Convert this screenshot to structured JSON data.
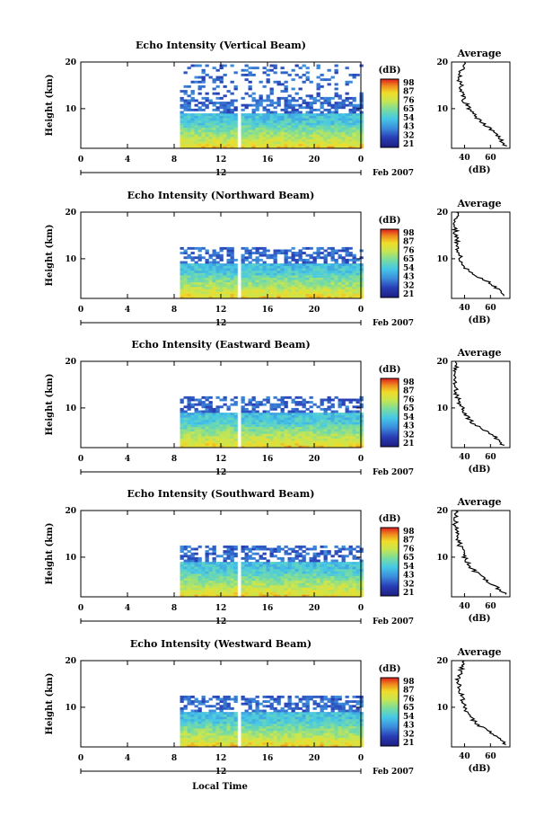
{
  "figure": {
    "x_title": "Local Time",
    "date_label": "Feb 2007",
    "day_label": "12",
    "x_ticks": [
      "0",
      "4",
      "8",
      "12",
      "16",
      "20",
      "0"
    ],
    "y_label": "Height (km)",
    "y_ticks": [
      "20",
      "10"
    ],
    "colorbar_unit": "(dB)",
    "colorbar_ticks": [
      "98",
      "87",
      "76",
      "65",
      "54",
      "43",
      "32",
      "21"
    ],
    "avg_title": "Average",
    "avg_xlabel": "(dB)",
    "avg_x_ticks": [
      "40",
      "60"
    ],
    "avg_y_ticks": [
      "20",
      "10"
    ],
    "colors": {
      "ink": "#000000",
      "low": "#283c9b",
      "mid": "#3ca0d7",
      "high": "#f0e628",
      "peak": "#d2281e"
    }
  },
  "chart_data": [
    {
      "type": "heatmap",
      "title": "Echo Intensity (Vertical Beam)",
      "xlabel": "Local Time",
      "ylabel": "Height (km)",
      "xlim": [
        0,
        24
      ],
      "ylim": [
        1.5,
        20
      ],
      "zlim": [
        21,
        98
      ],
      "data_start_hour": 8.5,
      "gap_hours": [
        13.4,
        13.6
      ],
      "echo_top_km": 19.5,
      "profile": {
        "heights_km": [
          2,
          4,
          6,
          8,
          10,
          12,
          14,
          16,
          18,
          20
        ],
        "values_db": [
          72,
          66,
          58,
          50,
          44,
          39,
          38,
          36,
          37,
          40
        ]
      },
      "avg_xlim": [
        30,
        75
      ]
    },
    {
      "type": "heatmap",
      "title": "Echo Intensity (Northward Beam)",
      "xlabel": "Local Time",
      "ylabel": "Height (km)",
      "xlim": [
        0,
        24
      ],
      "ylim": [
        1.5,
        20
      ],
      "zlim": [
        21,
        98
      ],
      "data_start_hour": 8.5,
      "gap_hours": [
        13.4,
        13.6
      ],
      "echo_top_km": 12.5,
      "profile": {
        "heights_km": [
          2,
          4,
          6,
          8,
          10,
          12,
          14,
          16,
          18,
          20
        ],
        "values_db": [
          72,
          64,
          52,
          41,
          37,
          35,
          34,
          33,
          33,
          34
        ]
      },
      "avg_xlim": [
        30,
        75
      ]
    },
    {
      "type": "heatmap",
      "title": "Echo Intensity (Eastward Beam)",
      "xlabel": "Local Time",
      "ylabel": "Height (km)",
      "xlim": [
        0,
        24
      ],
      "ylim": [
        1.5,
        20
      ],
      "zlim": [
        21,
        98
      ],
      "data_start_hour": 8.5,
      "gap_hours": [
        13.4,
        13.6
      ],
      "echo_top_km": 12.5,
      "profile": {
        "heights_km": [
          2,
          4,
          6,
          8,
          10,
          12,
          14,
          16,
          18,
          20
        ],
        "values_db": [
          70,
          62,
          50,
          42,
          38,
          35,
          33,
          32,
          33,
          33
        ]
      },
      "avg_xlim": [
        30,
        75
      ]
    },
    {
      "type": "heatmap",
      "title": "Echo Intensity (Southward Beam)",
      "xlabel": "Local Time",
      "ylabel": "Height (km)",
      "xlim": [
        0,
        24
      ],
      "ylim": [
        1.5,
        20
      ],
      "zlim": [
        21,
        98
      ],
      "data_start_hour": 8.5,
      "gap_hours": [
        13.4,
        13.6
      ],
      "echo_top_km": 12.5,
      "profile": {
        "heights_km": [
          2,
          4,
          6,
          8,
          10,
          12,
          14,
          16,
          18,
          20
        ],
        "values_db": [
          72,
          63,
          52,
          44,
          40,
          37,
          35,
          33,
          33,
          33
        ]
      },
      "avg_xlim": [
        30,
        75
      ]
    },
    {
      "type": "heatmap",
      "title": "Echo Intensity (Westward Beam)",
      "xlabel": "Local Time",
      "ylabel": "Height (km)",
      "xlim": [
        0,
        24
      ],
      "ylim": [
        1.5,
        20
      ],
      "zlim": [
        21,
        98
      ],
      "data_start_hour": 8.5,
      "gap_hours": [
        13.4,
        13.6
      ],
      "echo_top_km": 12.5,
      "profile": {
        "heights_km": [
          2,
          4,
          6,
          8,
          10,
          12,
          14,
          16,
          18,
          20
        ],
        "values_db": [
          72,
          64,
          52,
          44,
          40,
          38,
          36,
          35,
          37,
          40
        ]
      },
      "avg_xlim": [
        30,
        75
      ]
    }
  ]
}
